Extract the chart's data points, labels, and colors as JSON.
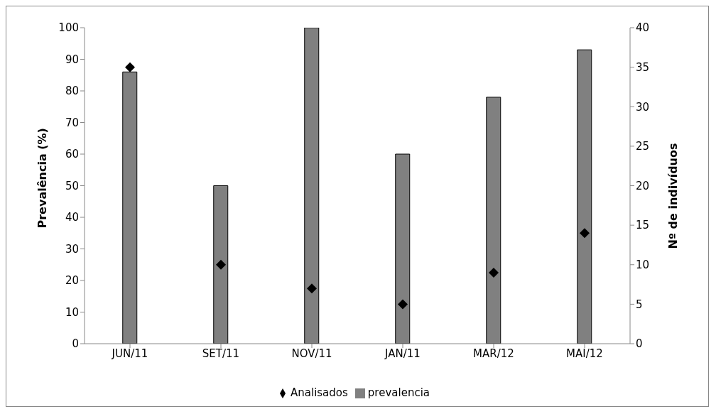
{
  "chart_data": {
    "type": "bar",
    "categories": [
      "JUN/11",
      "SET/11",
      "NOV/11",
      "JAN/11",
      "MAR/12",
      "MAI/12"
    ],
    "series": [
      {
        "name": "prevalencia",
        "color": "#808080",
        "values": [
          86,
          50,
          100,
          60,
          78,
          93
        ]
      },
      {
        "name": "Analisados",
        "type": "scatter",
        "axis": "y2",
        "color": "#000000",
        "values": [
          35,
          10,
          7,
          5,
          9,
          14
        ]
      }
    ],
    "ylabel": "Prevalência (%)",
    "y2label": "Nº de indivíduos",
    "ylim": [
      0,
      100
    ],
    "yticks": [
      0,
      10,
      20,
      30,
      40,
      50,
      60,
      70,
      80,
      90,
      100
    ],
    "y2lim": [
      0,
      40
    ],
    "y2ticks": [
      0,
      5,
      10,
      15,
      20,
      25,
      30,
      35,
      40
    ],
    "grid": false,
    "legend": "bottom",
    "marker": "diamond"
  }
}
